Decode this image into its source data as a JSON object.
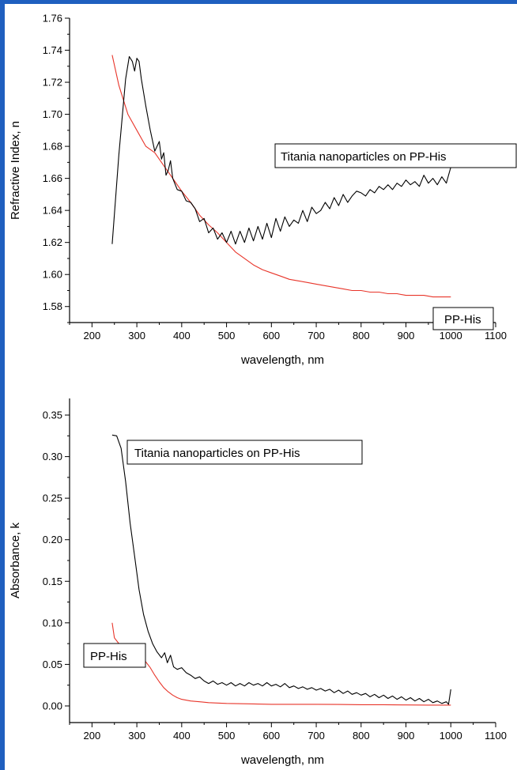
{
  "chart_data": [
    {
      "type": "line",
      "xlabel": "wavelength, nm",
      "ylabel": "Refractive Index, n",
      "xlim": [
        150,
        1100
      ],
      "ylim": [
        1.57,
        1.76
      ],
      "xticks": [
        "200",
        "300",
        "400",
        "500",
        "600",
        "700",
        "800",
        "900",
        "1000",
        "1100"
      ],
      "yticks": [
        "1.58",
        "1.60",
        "1.62",
        "1.64",
        "1.66",
        "1.68",
        "1.70",
        "1.72",
        "1.74",
        "1.76"
      ],
      "annotations": [
        {
          "text": "Titania nanoparticles on PP-His",
          "boxed": true
        },
        {
          "text": "PP-His",
          "boxed": true
        }
      ],
      "series": [
        {
          "name": "Titania nanoparticles on PP-His",
          "color": "#000000",
          "x": [
            245,
            260,
            275,
            283,
            290,
            295,
            300,
            305,
            310,
            320,
            330,
            340,
            350,
            355,
            360,
            365,
            370,
            375,
            380,
            390,
            400,
            410,
            420,
            430,
            440,
            450,
            460,
            470,
            480,
            490,
            500,
            510,
            520,
            530,
            540,
            550,
            560,
            570,
            580,
            590,
            600,
            610,
            620,
            630,
            640,
            650,
            660,
            670,
            680,
            690,
            700,
            710,
            720,
            730,
            740,
            750,
            760,
            770,
            780,
            790,
            800,
            810,
            820,
            830,
            840,
            850,
            860,
            870,
            880,
            890,
            900,
            910,
            920,
            930,
            940,
            950,
            960,
            970,
            980,
            990,
            995,
            1000
          ],
          "y": [
            1.619,
            1.675,
            1.722,
            1.736,
            1.733,
            1.727,
            1.735,
            1.733,
            1.722,
            1.705,
            1.69,
            1.677,
            1.683,
            1.672,
            1.676,
            1.662,
            1.665,
            1.671,
            1.66,
            1.653,
            1.652,
            1.646,
            1.645,
            1.641,
            1.633,
            1.635,
            1.626,
            1.629,
            1.622,
            1.626,
            1.62,
            1.627,
            1.619,
            1.627,
            1.62,
            1.629,
            1.621,
            1.63,
            1.622,
            1.632,
            1.623,
            1.635,
            1.627,
            1.636,
            1.63,
            1.634,
            1.632,
            1.64,
            1.633,
            1.642,
            1.638,
            1.64,
            1.645,
            1.641,
            1.648,
            1.643,
            1.65,
            1.645,
            1.649,
            1.652,
            1.651,
            1.649,
            1.653,
            1.651,
            1.655,
            1.653,
            1.656,
            1.653,
            1.657,
            1.655,
            1.659,
            1.656,
            1.658,
            1.655,
            1.662,
            1.657,
            1.66,
            1.656,
            1.661,
            1.657,
            1.662,
            1.667
          ]
        },
        {
          "name": "PP-His",
          "color": "#e8352a",
          "x": [
            245,
            260,
            280,
            300,
            320,
            340,
            360,
            380,
            400,
            420,
            440,
            460,
            480,
            500,
            520,
            540,
            560,
            580,
            600,
            620,
            640,
            660,
            680,
            700,
            720,
            740,
            760,
            780,
            800,
            820,
            840,
            860,
            880,
            900,
            920,
            940,
            960,
            980,
            1000
          ],
          "y": [
            1.737,
            1.718,
            1.7,
            1.69,
            1.68,
            1.676,
            1.668,
            1.66,
            1.652,
            1.645,
            1.637,
            1.631,
            1.626,
            1.62,
            1.614,
            1.61,
            1.606,
            1.603,
            1.601,
            1.599,
            1.597,
            1.596,
            1.595,
            1.594,
            1.593,
            1.592,
            1.591,
            1.59,
            1.59,
            1.589,
            1.589,
            1.588,
            1.588,
            1.587,
            1.587,
            1.587,
            1.586,
            1.586,
            1.586
          ]
        }
      ]
    },
    {
      "type": "line",
      "xlabel": "wavelength, nm",
      "ylabel": "Absorbance, k",
      "xlim": [
        150,
        1100
      ],
      "ylim": [
        -0.02,
        0.37
      ],
      "xticks": [
        "200",
        "300",
        "400",
        "500",
        "600",
        "700",
        "800",
        "900",
        "1000",
        "1100"
      ],
      "yticks": [
        "0.00",
        "0.05",
        "0.10",
        "0.15",
        "0.20",
        "0.25",
        "0.30",
        "0.35"
      ],
      "annotations": [
        {
          "text": "Titania nanoparticles on PP-His",
          "boxed": true
        },
        {
          "text": "PP-His",
          "boxed": true
        }
      ],
      "series": [
        {
          "name": "Titania nanoparticles on PP-His",
          "color": "#000000",
          "x": [
            245,
            255,
            265,
            275,
            285,
            295,
            305,
            315,
            325,
            335,
            345,
            355,
            362,
            368,
            375,
            382,
            390,
            400,
            410,
            420,
            430,
            440,
            450,
            460,
            470,
            480,
            490,
            500,
            510,
            520,
            530,
            540,
            550,
            560,
            570,
            580,
            590,
            600,
            610,
            620,
            630,
            640,
            650,
            660,
            670,
            680,
            690,
            700,
            710,
            720,
            730,
            740,
            750,
            760,
            770,
            780,
            790,
            800,
            810,
            820,
            830,
            840,
            850,
            860,
            870,
            880,
            890,
            900,
            910,
            920,
            930,
            940,
            950,
            960,
            970,
            980,
            990,
            995,
            1000
          ],
          "y": [
            0.326,
            0.325,
            0.31,
            0.27,
            0.22,
            0.18,
            0.14,
            0.11,
            0.09,
            0.075,
            0.065,
            0.058,
            0.064,
            0.052,
            0.061,
            0.047,
            0.044,
            0.046,
            0.04,
            0.037,
            0.033,
            0.035,
            0.03,
            0.027,
            0.03,
            0.026,
            0.028,
            0.025,
            0.028,
            0.024,
            0.027,
            0.024,
            0.028,
            0.025,
            0.027,
            0.024,
            0.028,
            0.024,
            0.026,
            0.023,
            0.027,
            0.022,
            0.024,
            0.021,
            0.023,
            0.02,
            0.022,
            0.019,
            0.021,
            0.018,
            0.02,
            0.016,
            0.019,
            0.015,
            0.018,
            0.014,
            0.016,
            0.013,
            0.015,
            0.011,
            0.014,
            0.01,
            0.013,
            0.009,
            0.012,
            0.008,
            0.011,
            0.007,
            0.01,
            0.006,
            0.009,
            0.005,
            0.008,
            0.004,
            0.006,
            0.003,
            0.005,
            0.002,
            0.02
          ]
        },
        {
          "name": "PP-His",
          "color": "#e8352a",
          "x": [
            245,
            250,
            260,
            270,
            280,
            290,
            300,
            310,
            320,
            330,
            340,
            350,
            360,
            370,
            380,
            390,
            400,
            420,
            440,
            460,
            480,
            500,
            550,
            600,
            650,
            700,
            750,
            800,
            850,
            900,
            950,
            1000
          ],
          "y": [
            0.1,
            0.082,
            0.075,
            0.072,
            0.07,
            0.067,
            0.063,
            0.059,
            0.053,
            0.046,
            0.037,
            0.029,
            0.022,
            0.017,
            0.013,
            0.01,
            0.008,
            0.006,
            0.005,
            0.004,
            0.0035,
            0.003,
            0.0025,
            0.002,
            0.002,
            0.002,
            0.0018,
            0.0015,
            0.0015,
            0.0012,
            0.001,
            0.001
          ]
        }
      ]
    }
  ]
}
